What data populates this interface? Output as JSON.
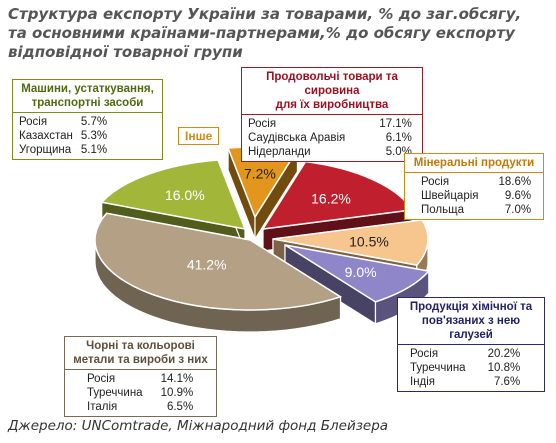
{
  "title_lines": [
    "Структура експорту України за товарами, % до заг.обсягу,",
    "та основними країнами-партнерами,% до обсягу експорту",
    "відповідної товарної групи"
  ],
  "source": "Джерело: UNComtrade, Міжнародний фонд Блейзера",
  "colors": {
    "food": "#c0202e",
    "minerals": "#f7c58e",
    "chemical": "#8f86c9",
    "metals": "#b3a085",
    "machinery": "#a2b73a",
    "other": "#e3961e"
  },
  "chart_data": {
    "type": "pie",
    "slices": [
      {
        "key": "other",
        "label": "Інше",
        "value": 7.2,
        "label_text": "7.2%"
      },
      {
        "key": "food",
        "label": "Продовольчі товари та сировина для їх виробництва",
        "value": 16.2,
        "label_text": "16.2%"
      },
      {
        "key": "minerals",
        "label": "Мінеральні продукти",
        "value": 10.5,
        "label_text": "10.5%"
      },
      {
        "key": "chemical",
        "label": "Продукція хімічної та пов'язаних з нею галузей",
        "value": 9.0,
        "label_text": "9.0%"
      },
      {
        "key": "metals",
        "label": "Чорні та кольорові метали та вироби з них",
        "value": 41.2,
        "label_text": "41.2%"
      },
      {
        "key": "machinery",
        "label": "Машини, устаткування, транспортні засоби",
        "value": 16.0,
        "label_text": "16.0%"
      }
    ]
  },
  "callouts": {
    "machinery": {
      "title_lines": [
        "Машини, устаткування,",
        "транспортні засоби"
      ],
      "rows": [
        {
          "country": "Росія",
          "value": "5.7%"
        },
        {
          "country": "Казахстан",
          "value": "5.3%"
        },
        {
          "country": "Угорщина",
          "value": "5.1%"
        }
      ]
    },
    "food": {
      "title_lines": [
        "Продовольчі товари та сировина",
        "для їх виробництва"
      ],
      "rows": [
        {
          "country": "Росія",
          "value": "17.1%"
        },
        {
          "country": "Саудівська Аравія",
          "value": "6.1%"
        },
        {
          "country": "Нідерланди",
          "value": "5.0%"
        }
      ]
    },
    "minerals": {
      "title_lines": [
        "Мінеральні продукти"
      ],
      "rows": [
        {
          "country": "Росія",
          "value": "18.6%"
        },
        {
          "country": "Швейцарія",
          "value": "9.6%"
        },
        {
          "country": "Польща",
          "value": "7.0%"
        }
      ]
    },
    "chemical": {
      "title_lines": [
        "Продукція хімічної та",
        "пов'язаних з нею галузей"
      ],
      "rows": [
        {
          "country": "Росія",
          "value": "20.2%"
        },
        {
          "country": "Туреччина",
          "value": "10.8%"
        },
        {
          "country": "Індія",
          "value": "7.6%"
        }
      ]
    },
    "metals": {
      "title_lines": [
        "Чорні та кольорові",
        "метали та вироби з них"
      ],
      "rows": [
        {
          "country": "Росія",
          "value": "14.1%"
        },
        {
          "country": "Туреччина",
          "value": "10.9%"
        },
        {
          "country": "Італія",
          "value": "6.5%"
        }
      ]
    },
    "other": {
      "title_lines": [
        "Інше"
      ]
    }
  }
}
